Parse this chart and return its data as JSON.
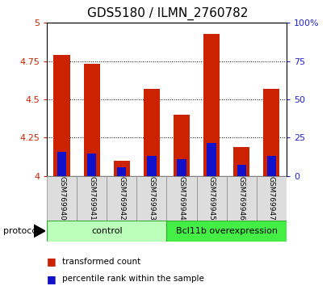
{
  "title": "GDS5180 / ILMN_2760782",
  "samples": [
    "GSM769940",
    "GSM769941",
    "GSM769942",
    "GSM769943",
    "GSM769944",
    "GSM769945",
    "GSM769946",
    "GSM769947"
  ],
  "red_tops": [
    4.79,
    4.73,
    4.1,
    4.57,
    4.4,
    4.93,
    4.19,
    4.57
  ],
  "blue_tops": [
    4.155,
    4.145,
    4.055,
    4.13,
    4.11,
    4.215,
    4.07,
    4.13
  ],
  "baseline": 4.0,
  "ymin": 4.0,
  "ymax": 5.0,
  "yticks_left": [
    4.0,
    4.25,
    4.5,
    4.75,
    5.0
  ],
  "ytick_labels_left": [
    "4",
    "4.25",
    "4.5",
    "4.75",
    "5"
  ],
  "right_ytick_pcts": [
    0,
    25,
    50,
    75,
    100
  ],
  "right_yticklabels": [
    "0",
    "25",
    "50",
    "75",
    "100%"
  ],
  "red_color": "#CC2200",
  "blue_color": "#1111CC",
  "bar_width": 0.55,
  "control_label": "control",
  "overexp_label": "Bcl11b overexpression",
  "protocol_label": "protocol",
  "legend1": "transformed count",
  "legend2": "percentile rank within the sample",
  "control_bg": "#BBFFBB",
  "overexp_bg": "#44EE44",
  "tick_label_bg": "#DDDDDD",
  "title_fontsize": 11,
  "tick_fontsize": 8,
  "left_tick_color": "#CC2200",
  "right_tick_color": "#2222CC"
}
